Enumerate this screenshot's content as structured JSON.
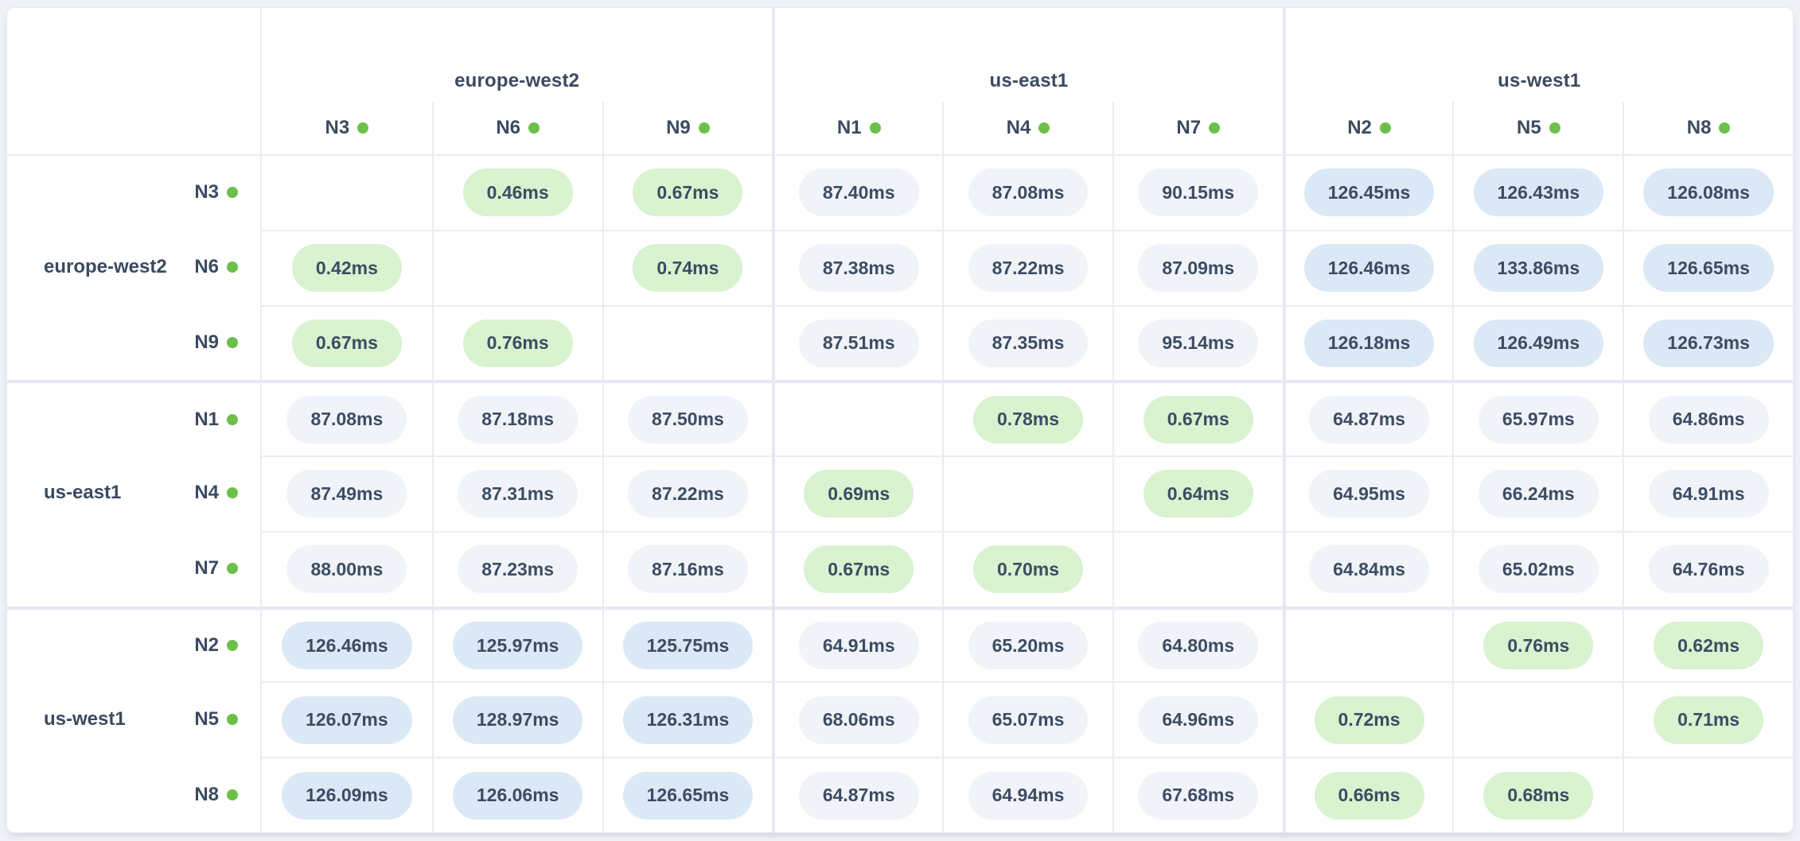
{
  "colors": {
    "page_bg": "#eff1f6",
    "card_bg": "#ffffff",
    "card_border": "#e6e9ef",
    "grid_line": "#e9ecf2",
    "group_line": "#e5e8f0",
    "header_text": "#3b4a60",
    "text": "#3d4c63",
    "dot": "#6cc04a",
    "green_pill": "#d9f2cf",
    "gray_pill": "#f0f3f8",
    "blue_pill": "#dbe8f6"
  },
  "value_buckets": {
    "green_below_ms": 1,
    "blue_at_or_above_ms": 100
  },
  "regions": [
    {
      "name": "europe-west2",
      "nodes": [
        "N3",
        "N6",
        "N9"
      ]
    },
    {
      "name": "us-east1",
      "nodes": [
        "N1",
        "N4",
        "N7"
      ]
    },
    {
      "name": "us-west1",
      "nodes": [
        "N2",
        "N5",
        "N8"
      ]
    }
  ],
  "columns": [
    "N3",
    "N6",
    "N9",
    "N1",
    "N4",
    "N7",
    "N2",
    "N5",
    "N8"
  ],
  "matrix": {
    "rows": [
      {
        "region": "europe-west2",
        "node": "N3",
        "values": [
          null,
          "0.46ms",
          "0.67ms",
          "87.40ms",
          "87.08ms",
          "90.15ms",
          "126.45ms",
          "126.43ms",
          "126.08ms"
        ]
      },
      {
        "region": "europe-west2",
        "node": "N6",
        "values": [
          "0.42ms",
          null,
          "0.74ms",
          "87.38ms",
          "87.22ms",
          "87.09ms",
          "126.46ms",
          "133.86ms",
          "126.65ms"
        ]
      },
      {
        "region": "europe-west2",
        "node": "N9",
        "values": [
          "0.67ms",
          "0.76ms",
          null,
          "87.51ms",
          "87.35ms",
          "95.14ms",
          "126.18ms",
          "126.49ms",
          "126.73ms"
        ]
      },
      {
        "region": "us-east1",
        "node": "N1",
        "values": [
          "87.08ms",
          "87.18ms",
          "87.50ms",
          null,
          "0.78ms",
          "0.67ms",
          "64.87ms",
          "65.97ms",
          "64.86ms"
        ]
      },
      {
        "region": "us-east1",
        "node": "N4",
        "values": [
          "87.49ms",
          "87.31ms",
          "87.22ms",
          "0.69ms",
          null,
          "0.64ms",
          "64.95ms",
          "66.24ms",
          "64.91ms"
        ]
      },
      {
        "region": "us-east1",
        "node": "N7",
        "values": [
          "88.00ms",
          "87.23ms",
          "87.16ms",
          "0.67ms",
          "0.70ms",
          null,
          "64.84ms",
          "65.02ms",
          "64.76ms"
        ]
      },
      {
        "region": "us-west1",
        "node": "N2",
        "values": [
          "126.46ms",
          "125.97ms",
          "125.75ms",
          "64.91ms",
          "65.20ms",
          "64.80ms",
          null,
          "0.76ms",
          "0.62ms"
        ]
      },
      {
        "region": "us-west1",
        "node": "N5",
        "values": [
          "126.07ms",
          "128.97ms",
          "126.31ms",
          "68.06ms",
          "65.07ms",
          "64.96ms",
          "0.72ms",
          null,
          "0.71ms"
        ]
      },
      {
        "region": "us-west1",
        "node": "N8",
        "values": [
          "126.09ms",
          "126.06ms",
          "126.65ms",
          "64.87ms",
          "64.94ms",
          "67.68ms",
          "0.66ms",
          "0.68ms",
          null
        ]
      }
    ]
  }
}
